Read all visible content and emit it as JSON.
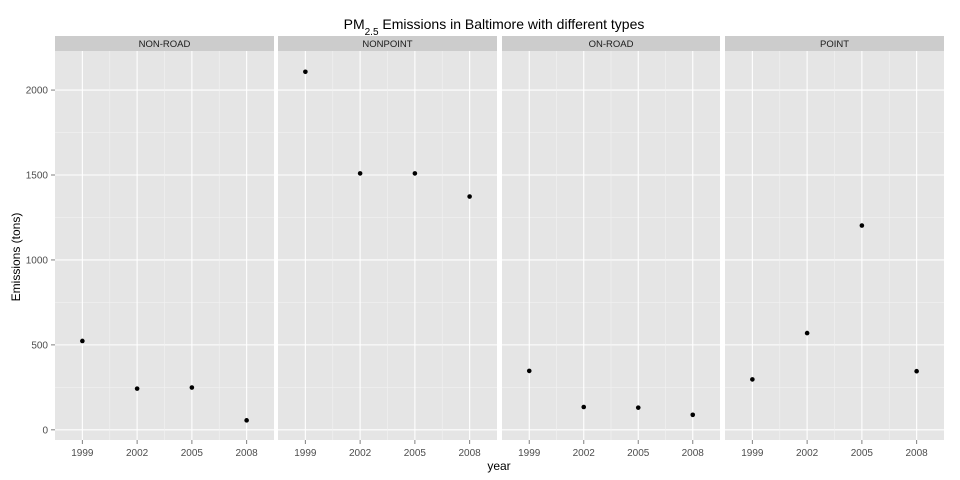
{
  "chart_data": {
    "type": "scatter",
    "title": {
      "prefix": "PM",
      "subscript": "2.5",
      "suffix": " Emissions in Baltimore with different types"
    },
    "xlabel": "year",
    "ylabel": "Emissions (tons)",
    "x": [
      1999,
      2002,
      2005,
      2008
    ],
    "x_ticks": [
      "1999",
      "2002",
      "2005",
      "2008"
    ],
    "y_ticks": [
      0,
      500,
      1000,
      1500,
      2000
    ],
    "ylim": [
      -60,
      2230
    ],
    "grid": true,
    "facets": [
      {
        "label": "NON-ROAD",
        "values": [
          522.94,
          242.38,
          248.93,
          55.82
        ]
      },
      {
        "label": "NONPOINT",
        "values": [
          2107.63,
          1509.5,
          1509.5,
          1373.21
        ]
      },
      {
        "label": "ON-ROAD",
        "values": [
          346.82,
          134.31,
          130.43,
          88.28
        ]
      },
      {
        "label": "POINT",
        "values": [
          296.8,
          569.26,
          1202.49,
          344.98
        ]
      }
    ],
    "colors": {
      "panel_background": "#e5e5e5",
      "grid_major": "#ffffff",
      "grid_minor": "#f2f2f2",
      "strip_background": "#cccccc",
      "point": "#000000"
    }
  }
}
